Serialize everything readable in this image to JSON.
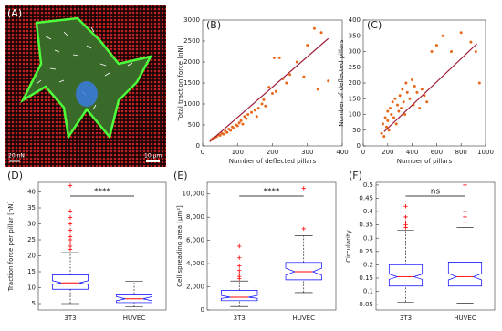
{
  "panel_a": {
    "label": "(A)",
    "scale_force": "20 nN",
    "scale_bar": "10 μm"
  },
  "chart_data": [
    {
      "type": "scatter",
      "label": "(B)",
      "xlabel": "Number of deflected pillars",
      "ylabel": "Total traction force [nN]",
      "xlim": [
        0,
        400
      ],
      "xticks": [
        0,
        100,
        200,
        300,
        400
      ],
      "ylim": [
        0,
        3000
      ],
      "yticks": [
        0,
        500,
        1000,
        1500,
        2000,
        2500,
        3000
      ],
      "points": {
        "color": "#e8671a",
        "x": [
          25,
          30,
          35,
          40,
          45,
          50,
          55,
          60,
          65,
          70,
          75,
          80,
          85,
          90,
          95,
          100,
          105,
          110,
          115,
          120,
          125,
          130,
          140,
          150,
          155,
          160,
          170,
          175,
          180,
          190,
          200,
          205,
          210,
          220,
          230,
          240,
          250,
          270,
          290,
          300,
          320,
          330,
          340,
          360
        ],
        "y": [
          150,
          180,
          200,
          220,
          260,
          250,
          300,
          280,
          350,
          320,
          400,
          370,
          450,
          420,
          500,
          480,
          550,
          600,
          520,
          700,
          650,
          750,
          800,
          850,
          700,
          900,
          1000,
          1100,
          950,
          1400,
          1250,
          2100,
          1300,
          2100,
          1600,
          1500,
          1700,
          2000,
          1650,
          2400,
          2800,
          1350,
          2700,
          1550
        ]
      },
      "fit_line": {
        "color": "#a0203a",
        "x": [
          20,
          360
        ],
        "y": [
          100,
          2560
        ]
      }
    },
    {
      "type": "scatter",
      "label": "(C)",
      "xlabel": "Number of pillars",
      "ylabel": "Number of deflected pillars",
      "xlim": [
        0,
        1000
      ],
      "xticks": [
        0,
        200,
        400,
        600,
        800,
        1000
      ],
      "ylim": [
        0,
        400
      ],
      "yticks": [
        0,
        50,
        100,
        150,
        200,
        250,
        300,
        350,
        400
      ],
      "points": {
        "color": "#e8671a",
        "x": [
          150,
          160,
          170,
          180,
          190,
          200,
          200,
          210,
          220,
          230,
          240,
          250,
          260,
          270,
          280,
          290,
          300,
          310,
          320,
          330,
          340,
          350,
          360,
          380,
          400,
          410,
          420,
          440,
          460,
          480,
          500,
          520,
          560,
          600,
          650,
          720,
          800,
          880,
          920,
          950
        ],
        "y": [
          40,
          70,
          30,
          90,
          60,
          110,
          80,
          50,
          120,
          100,
          140,
          90,
          150,
          70,
          130,
          110,
          160,
          120,
          180,
          140,
          100,
          200,
          170,
          150,
          210,
          130,
          190,
          170,
          120,
          180,
          160,
          140,
          300,
          320,
          350,
          300,
          360,
          330,
          300,
          200
        ]
      },
      "fit_line": {
        "color": "#a0203a",
        "x": [
          170,
          930
        ],
        "y": [
          45,
          325
        ]
      }
    },
    {
      "type": "box",
      "label": "(D)",
      "ylabel": "Traction force per pillar [nN]",
      "annotation": "****",
      "categories": [
        "3T3",
        "HUVEC"
      ],
      "ylim": [
        3,
        43
      ],
      "yticks": [
        5,
        10,
        15,
        20,
        25,
        30,
        35,
        40
      ],
      "box_color": "#0000ff",
      "median_color": "#ff0000",
      "outlier_color": "#ff0000",
      "boxes": [
        {
          "whislo": 5,
          "q1": 9.5,
          "median": 11.5,
          "q3": 14,
          "whishi": 21,
          "notch": [
            11,
            12.2
          ],
          "outliers": [
            22,
            23,
            24,
            25,
            26,
            28,
            30,
            32,
            34,
            42
          ]
        },
        {
          "whislo": 4,
          "q1": 5.3,
          "median": 6.5,
          "q3": 8,
          "whishi": 12,
          "notch": [
            5.9,
            7.2
          ],
          "outliers": []
        }
      ]
    },
    {
      "type": "box",
      "label": "(E)",
      "ylabel": "Cell spreading area [μm²]",
      "annotation": "****",
      "categories": [
        "3T3",
        "HUVEC"
      ],
      "ylim": [
        0,
        11000
      ],
      "yticks": [
        0,
        {
          "value": 2000,
          "label": "2,000"
        },
        {
          "value": 4000,
          "label": "4,000"
        },
        {
          "value": 6000,
          "label": "6,000"
        },
        {
          "value": 8000,
          "label": "8,000"
        },
        {
          "value": 10000,
          "label": "10,000"
        }
      ],
      "box_color": "#0000ff",
      "median_color": "#ff0000",
      "outlier_color": "#ff0000",
      "boxes": [
        {
          "whislo": 300,
          "q1": 800,
          "median": 1100,
          "q3": 1700,
          "whishi": 2500,
          "notch": [
            1000,
            1250
          ],
          "outliers": [
            2700,
            2900,
            3100,
            3400,
            3800,
            4500,
            5500
          ]
        },
        {
          "whislo": 1500,
          "q1": 2600,
          "median": 3300,
          "q3": 4100,
          "whishi": 6400,
          "notch": [
            3000,
            3600
          ],
          "outliers": [
            7000,
            10500
          ]
        }
      ]
    },
    {
      "type": "box",
      "label": "(F)",
      "ylabel": "Circularity",
      "annotation": "ns",
      "categories": [
        "3T3",
        "HUVEC"
      ],
      "ylim": [
        0.03,
        0.51
      ],
      "yticks": [
        0.05,
        0.1,
        0.15,
        0.2,
        0.25,
        0.3,
        0.35,
        0.4,
        0.45,
        0.5
      ],
      "box_color": "#0000ff",
      "median_color": "#ff0000",
      "outlier_color": "#ff0000",
      "boxes": [
        {
          "whislo": 0.06,
          "q1": 0.12,
          "median": 0.155,
          "q3": 0.2,
          "whishi": 0.33,
          "notch": [
            0.145,
            0.165
          ],
          "outliers": [
            0.34,
            0.35,
            0.36,
            0.38,
            0.42
          ]
        },
        {
          "whislo": 0.055,
          "q1": 0.12,
          "median": 0.155,
          "q3": 0.21,
          "whishi": 0.34,
          "notch": [
            0.143,
            0.167
          ],
          "outliers": [
            0.36,
            0.38,
            0.4,
            0.5
          ]
        }
      ]
    }
  ]
}
